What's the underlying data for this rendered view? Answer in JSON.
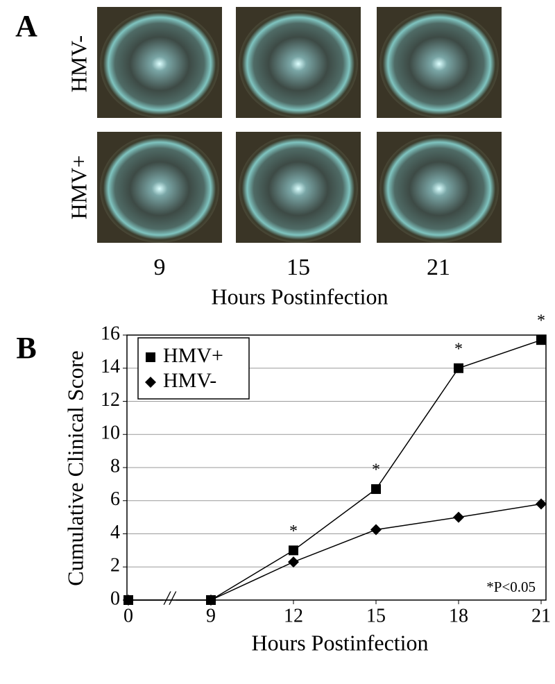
{
  "panel_a": {
    "label": "A",
    "rows": [
      "HMV-",
      "HMV+"
    ],
    "columns": [
      "9",
      "15",
      "21"
    ],
    "x_label": "Hours Postinfection"
  },
  "chart_data": {
    "type": "line",
    "panel_label": "B",
    "categories": [
      "0",
      "9",
      "12",
      "15",
      "18",
      "21"
    ],
    "axis_break": "//",
    "x_label": "Hours Postinfection",
    "y_label": "Cumulative Clinical Score",
    "series": [
      {
        "name": "HMV+",
        "color": "#000000",
        "marker": "square",
        "values": [
          0,
          0,
          3,
          6.7,
          14,
          15.7
        ]
      },
      {
        "name": "HMV-",
        "color": "#000000",
        "marker": "diamond",
        "values": [
          0,
          0,
          2.3,
          4.25,
          5,
          5.8
        ]
      }
    ],
    "significance_labels": [
      null,
      null,
      "*",
      "*",
      "*",
      "*"
    ],
    "note": "*P<0.05",
    "ylim": [
      0,
      16
    ],
    "yticks": [
      0,
      2,
      4,
      6,
      8,
      10,
      12,
      14,
      16
    ],
    "grid": true,
    "legend": "top-left"
  }
}
